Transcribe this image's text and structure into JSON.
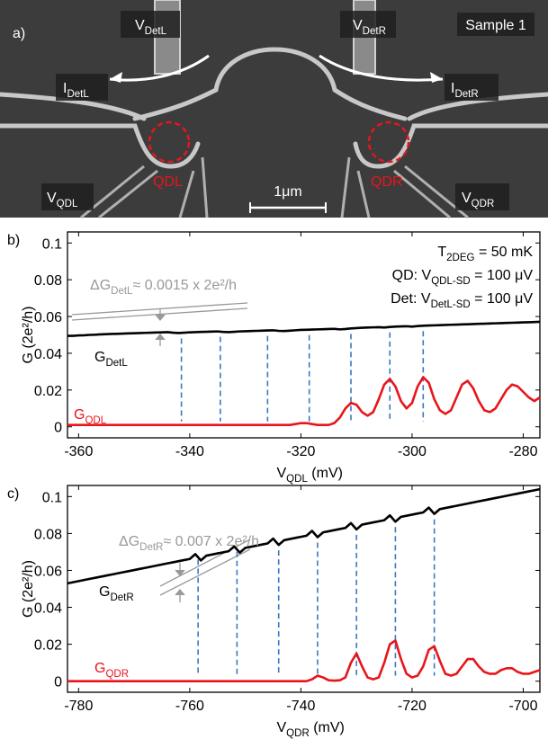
{
  "image": {
    "panel_label": "a)",
    "sample": "Sample 1",
    "scale_bar": "1μm",
    "dot_left": "QDL",
    "dot_right": "QDR",
    "labels": {
      "v_det_l": [
        "V",
        "DetL"
      ],
      "v_det_r": [
        "V",
        "DetR"
      ],
      "i_det_l": [
        "I",
        "DetL"
      ],
      "i_det_r": [
        "I",
        "DetR"
      ],
      "v_qd_l": [
        "V",
        "QDL"
      ],
      "v_qd_r": [
        "V",
        "QDR"
      ]
    }
  },
  "chart_data": [
    {
      "type": "line",
      "panel_label": "b)",
      "ylabel": "G (2e²/h)",
      "xlabel": [
        "V",
        "QDL",
        " (mV)"
      ],
      "xlim": [
        -362,
        -277
      ],
      "ylim": [
        -0.006,
        0.106
      ],
      "xticks": [
        -360,
        -340,
        -320,
        -300,
        -280
      ],
      "yticks": [
        0,
        0.02,
        0.04,
        0.06,
        0.08,
        0.1
      ],
      "x": [
        -362,
        -361,
        -360,
        -359,
        -358,
        -357,
        -356,
        -355,
        -354,
        -353,
        -352,
        -351,
        -350,
        -349,
        -348,
        -347,
        -346,
        -345,
        -344,
        -343,
        -342,
        -341,
        -340,
        -339,
        -338,
        -337,
        -336,
        -335,
        -334,
        -333,
        -332,
        -331,
        -330,
        -329,
        -328,
        -327,
        -326,
        -325,
        -324,
        -323,
        -322,
        -321,
        -320,
        -319,
        -318,
        -317,
        -316,
        -315,
        -314,
        -313,
        -312,
        -311,
        -310,
        -309,
        -308,
        -307,
        -306,
        -305,
        -304,
        -303,
        -302,
        -301,
        -300,
        -299,
        -298,
        -297,
        -296,
        -295,
        -294,
        -293,
        -292,
        -291,
        -290,
        -289,
        -288,
        -287,
        -286,
        -285,
        -284,
        -283,
        -282,
        -281,
        -280,
        -279,
        -278,
        -277
      ],
      "series": [
        {
          "label": [
            "G",
            "DetL"
          ],
          "color": "#000000",
          "values": [
            0.0495,
            0.0495,
            0.0497,
            0.0498,
            0.05,
            0.0501,
            0.0503,
            0.0504,
            0.0505,
            0.0506,
            0.0507,
            0.0508,
            0.0509,
            0.051,
            0.0511,
            0.0512,
            0.0513,
            0.0514,
            0.0515,
            0.0512,
            0.051,
            0.0512,
            0.0514,
            0.0515,
            0.0516,
            0.0517,
            0.0518,
            0.0519,
            0.0516,
            0.0515,
            0.0517,
            0.0519,
            0.052,
            0.0521,
            0.0522,
            0.0523,
            0.0524,
            0.0525,
            0.0522,
            0.0521,
            0.0523,
            0.0525,
            0.0527,
            0.0528,
            0.0529,
            0.053,
            0.0531,
            0.0532,
            0.0533,
            0.053,
            0.0532,
            0.0535,
            0.0537,
            0.0539,
            0.054,
            0.0541,
            0.0542,
            0.054,
            0.0543,
            0.0545,
            0.0546,
            0.0547,
            0.0545,
            0.0548,
            0.055,
            0.0551,
            0.0552,
            0.0553,
            0.0554,
            0.0555,
            0.0556,
            0.0557,
            0.0558,
            0.0559,
            0.056,
            0.0561,
            0.0562,
            0.0563,
            0.0564,
            0.0565,
            0.0566,
            0.0567,
            0.0568,
            0.0569,
            0.057,
            0.0571
          ]
        },
        {
          "label": [
            "G",
            "QDL"
          ],
          "color": "#e8151b",
          "values": [
            0.001,
            0.001,
            0.001,
            0.001,
            0.001,
            0.001,
            0.001,
            0.001,
            0.001,
            0.001,
            0.001,
            0.001,
            0.001,
            0.001,
            0.001,
            0.001,
            0.001,
            0.001,
            0.001,
            0.001,
            0.001,
            0.001,
            0.001,
            0.001,
            0.001,
            0.001,
            0.001,
            0.001,
            0.001,
            0.001,
            0.001,
            0.001,
            0.001,
            0.001,
            0.001,
            0.001,
            0.001,
            0.001,
            0.001,
            0.001,
            0.001,
            0.0015,
            0.002,
            0.002,
            0.0015,
            0.001,
            0.001,
            0.001,
            0.002,
            0.005,
            0.01,
            0.013,
            0.012,
            0.008,
            0.006,
            0.008,
            0.015,
            0.023,
            0.026,
            0.022,
            0.014,
            0.01,
            0.013,
            0.022,
            0.027,
            0.024,
            0.015,
            0.009,
            0.007,
            0.009,
            0.016,
            0.023,
            0.025,
            0.021,
            0.014,
            0.009,
            0.008,
            0.01,
            0.015,
            0.02,
            0.023,
            0.022,
            0.019,
            0.016,
            0.014,
            0.016
          ]
        }
      ],
      "markers": [
        -341.5,
        -334.5,
        -326,
        -318.5,
        -311,
        -304,
        -298
      ],
      "marker_color": "#3b78c0",
      "annotation": [
        "ΔG",
        "DetL",
        "≈ 0.0015 x 2e²/h"
      ],
      "conditions": [
        [
          "T",
          "2DEG",
          " = 50 mK"
        ],
        [
          "QD: V",
          "QDL-SD",
          " = 100 μV"
        ],
        [
          "Det: V",
          "DetL-SD",
          " = 100 μV"
        ]
      ]
    },
    {
      "type": "line",
      "panel_label": "c)",
      "ylabel": "G (2e²/h)",
      "xlabel": [
        "V",
        "QDR",
        " (mV)"
      ],
      "xlim": [
        -782,
        -697
      ],
      "ylim": [
        -0.006,
        0.106
      ],
      "xticks": [
        -780,
        -760,
        -740,
        -720,
        -700
      ],
      "yticks": [
        0,
        0.02,
        0.04,
        0.06,
        0.08,
        0.1
      ],
      "x": [
        -782,
        -781,
        -780,
        -779,
        -778,
        -777,
        -776,
        -775,
        -774,
        -773,
        -772,
        -771,
        -770,
        -769,
        -768,
        -767,
        -766,
        -765,
        -764,
        -763,
        -762,
        -761,
        -760,
        -759,
        -758,
        -757,
        -756,
        -755,
        -754,
        -753,
        -752,
        -751,
        -750,
        -749,
        -748,
        -747,
        -746,
        -745,
        -744,
        -743,
        -742,
        -741,
        -740,
        -739,
        -738,
        -737,
        -736,
        -735,
        -734,
        -733,
        -732,
        -731,
        -730,
        -729,
        -728,
        -727,
        -726,
        -725,
        -724,
        -723,
        -722,
        -721,
        -720,
        -719,
        -718,
        -717,
        -716,
        -715,
        -714,
        -713,
        -712,
        -711,
        -710,
        -709,
        -708,
        -707,
        -706,
        -705,
        -704,
        -703,
        -702,
        -701,
        -700,
        -699,
        -698,
        -697
      ],
      "series": [
        {
          "label": [
            "G",
            "DetR"
          ],
          "color": "#000000",
          "values": [
            0.053,
            0.0536,
            0.0542,
            0.0548,
            0.0554,
            0.056,
            0.0566,
            0.0572,
            0.0578,
            0.0584,
            0.059,
            0.0596,
            0.0602,
            0.0608,
            0.0614,
            0.062,
            0.0626,
            0.0632,
            0.0638,
            0.0644,
            0.065,
            0.0656,
            0.0662,
            0.0688,
            0.0654,
            0.068,
            0.0686,
            0.0692,
            0.0698,
            0.0704,
            0.073,
            0.0696,
            0.0722,
            0.0728,
            0.0734,
            0.074,
            0.0746,
            0.0772,
            0.0738,
            0.0764,
            0.077,
            0.0776,
            0.0782,
            0.0788,
            0.0814,
            0.078,
            0.0806,
            0.0812,
            0.0818,
            0.0824,
            0.083,
            0.0856,
            0.0822,
            0.0848,
            0.0854,
            0.086,
            0.0866,
            0.0872,
            0.0898,
            0.0864,
            0.089,
            0.0896,
            0.0902,
            0.0908,
            0.0914,
            0.094,
            0.0906,
            0.0932,
            0.0938,
            0.0944,
            0.095,
            0.0956,
            0.0962,
            0.0968,
            0.0974,
            0.098,
            0.0986,
            0.0992,
            0.0998,
            0.1004,
            0.101,
            0.1016,
            0.1022,
            0.1028,
            0.1034,
            0.104
          ]
        },
        {
          "label": [
            "G",
            "QDR"
          ],
          "color": "#e8151b",
          "values": [
            0,
            0,
            0,
            0,
            0,
            0,
            0,
            0,
            0,
            0,
            0,
            0,
            0,
            0,
            0,
            0,
            0,
            0,
            0,
            0,
            0,
            0,
            0,
            0,
            0,
            0,
            0,
            0,
            0,
            0,
            0,
            0,
            0,
            0,
            0,
            0,
            0,
            0,
            0,
            0,
            0,
            0,
            0,
            0,
            0.001,
            0.003,
            0.002,
            0.0005,
            0.0003,
            0.0005,
            0.002,
            0.01,
            0.015,
            0.008,
            0.002,
            0.001,
            0.002,
            0.01,
            0.02,
            0.022,
            0.012,
            0.004,
            0.002,
            0.003,
            0.008,
            0.017,
            0.019,
            0.011,
            0.004,
            0.003,
            0.004,
            0.008,
            0.012,
            0.012,
            0.008,
            0.005,
            0.004,
            0.004,
            0.006,
            0.007,
            0.007,
            0.005,
            0.004,
            0.004,
            0.005,
            0.006
          ]
        }
      ],
      "markers": [
        -758.5,
        -751.5,
        -744,
        -737,
        -730,
        -723,
        -716
      ],
      "marker_color": "#3b78c0",
      "annotation": [
        "ΔG",
        "DetR",
        "≈ 0.007 x 2e²/h"
      ]
    }
  ]
}
